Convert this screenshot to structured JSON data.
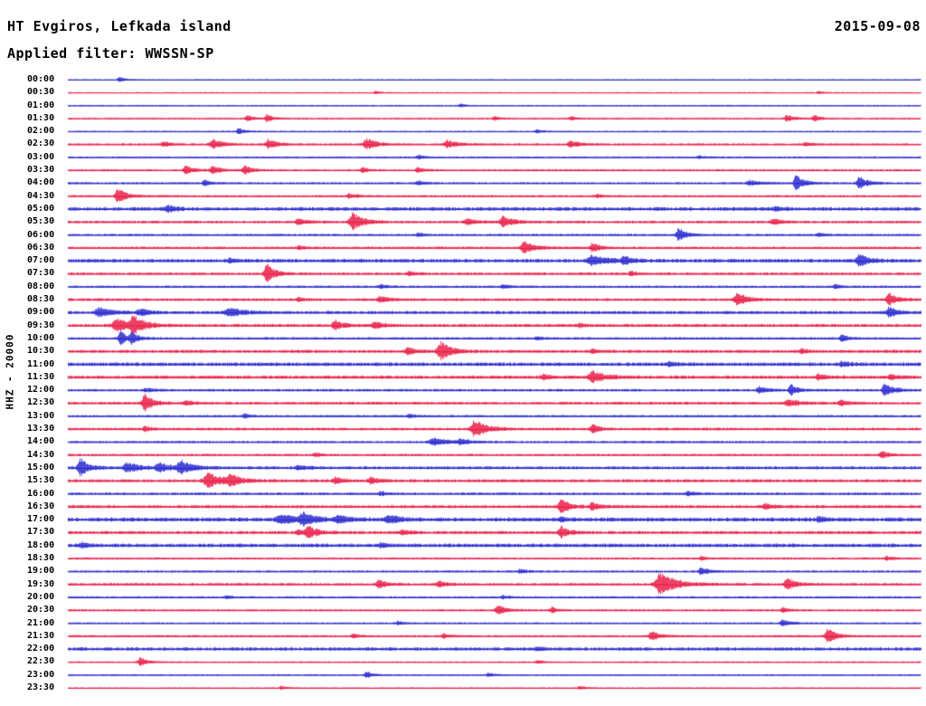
{
  "header": {
    "station_title": "HT Evgiros, Lefkada island",
    "date": "2015-09-08",
    "filter_label": "Applied filter: WWSSN-SP"
  },
  "axis": {
    "left_label": "HHZ - 20000"
  },
  "chart_data": {
    "type": "line",
    "subtype": "helicorder-seismogram",
    "title": "HT Evgiros, Lefkada island",
    "date": "2015-09-08",
    "filter": "WWSSN-SP",
    "channel_scale_label": "HHZ - 20000",
    "minutes_per_row": 30,
    "x_range_minutes": [
      0,
      30
    ],
    "legend": "none",
    "grid": false,
    "colors": {
      "blue": "#1c1ccd",
      "red": "#e8103c"
    },
    "rows": [
      {
        "label": "00:00",
        "color": "blue",
        "noise": 0.6,
        "events": [
          [
            0.06,
            3,
            3
          ]
        ]
      },
      {
        "label": "00:30",
        "color": "red",
        "noise": 0.6,
        "events": [
          [
            0.36,
            2.5,
            2
          ],
          [
            0.88,
            2,
            2
          ]
        ]
      },
      {
        "label": "01:00",
        "color": "blue",
        "noise": 0.7,
        "events": [
          [
            0.46,
            2.5,
            2
          ]
        ]
      },
      {
        "label": "01:30",
        "color": "red",
        "noise": 0.8,
        "events": [
          [
            0.21,
            4,
            3
          ],
          [
            0.233,
            5,
            3
          ],
          [
            0.5,
            2.5,
            3
          ],
          [
            0.59,
            2.5,
            3
          ],
          [
            0.843,
            4,
            4
          ],
          [
            0.875,
            4,
            3
          ]
        ]
      },
      {
        "label": "02:00",
        "color": "blue",
        "noise": 0.8,
        "events": [
          [
            0.2,
            4,
            3
          ],
          [
            0.55,
            2,
            3
          ]
        ]
      },
      {
        "label": "02:30",
        "color": "red",
        "noise": 1.2,
        "events": [
          [
            0.112,
            3,
            4
          ],
          [
            0.17,
            6,
            5
          ],
          [
            0.235,
            6,
            4
          ],
          [
            0.35,
            7,
            5
          ],
          [
            0.445,
            5,
            5
          ],
          [
            0.59,
            4,
            5
          ],
          [
            0.865,
            2.5,
            4
          ]
        ]
      },
      {
        "label": "03:00",
        "color": "blue",
        "noise": 1.0,
        "events": [
          [
            0.41,
            2.5,
            3
          ],
          [
            0.74,
            2,
            3
          ]
        ]
      },
      {
        "label": "03:30",
        "color": "red",
        "noise": 1.2,
        "events": [
          [
            0.138,
            5,
            4
          ],
          [
            0.17,
            5,
            4
          ],
          [
            0.207,
            5,
            4
          ],
          [
            0.345,
            3,
            3
          ],
          [
            0.41,
            3,
            3
          ]
        ]
      },
      {
        "label": "04:00",
        "color": "blue",
        "noise": 1.2,
        "events": [
          [
            0.16,
            4,
            3
          ],
          [
            0.41,
            2.5,
            3
          ],
          [
            0.8,
            3,
            6
          ],
          [
            0.854,
            9,
            4
          ],
          [
            0.928,
            8,
            4
          ]
        ]
      },
      {
        "label": "04:30",
        "color": "red",
        "noise": 1.2,
        "events": [
          [
            0.058,
            10,
            4
          ],
          [
            0.33,
            3,
            4
          ],
          [
            0.62,
            2,
            3
          ]
        ]
      },
      {
        "label": "05:00",
        "color": "blue",
        "noise": 2.2,
        "events": [
          [
            0.117,
            4,
            4
          ],
          [
            0.83,
            2.5,
            4
          ]
        ]
      },
      {
        "label": "05:30",
        "color": "red",
        "noise": 1.5,
        "events": [
          [
            0.27,
            4,
            4
          ],
          [
            0.334,
            11,
            5
          ],
          [
            0.468,
            4,
            4
          ],
          [
            0.51,
            7,
            5
          ],
          [
            0.827,
            4,
            4
          ]
        ]
      },
      {
        "label": "06:00",
        "color": "blue",
        "noise": 1.3,
        "events": [
          [
            0.41,
            2.5,
            3
          ],
          [
            0.716,
            8,
            4
          ],
          [
            0.88,
            2.5,
            3
          ]
        ]
      },
      {
        "label": "06:30",
        "color": "red",
        "noise": 1.5,
        "events": [
          [
            0.27,
            2.5,
            3
          ],
          [
            0.535,
            8,
            5
          ],
          [
            0.615,
            5,
            4
          ]
        ]
      },
      {
        "label": "07:00",
        "color": "blue",
        "noise": 2.2,
        "events": [
          [
            0.19,
            2.5,
            3
          ],
          [
            0.615,
            5,
            8
          ],
          [
            0.652,
            4,
            4
          ],
          [
            0.928,
            8,
            4
          ]
        ]
      },
      {
        "label": "07:30",
        "color": "red",
        "noise": 1.5,
        "events": [
          [
            0.233,
            12,
            4
          ],
          [
            0.4,
            3,
            3
          ],
          [
            0.66,
            2.5,
            3
          ]
        ]
      },
      {
        "label": "08:00",
        "color": "blue",
        "noise": 1.3,
        "events": [
          [
            0.366,
            2.5,
            3
          ],
          [
            0.51,
            2.5,
            3
          ],
          [
            0.9,
            2.5,
            3
          ]
        ]
      },
      {
        "label": "08:30",
        "color": "red",
        "noise": 1.6,
        "events": [
          [
            0.27,
            2.5,
            3
          ],
          [
            0.366,
            4,
            4
          ],
          [
            0.785,
            7,
            5
          ],
          [
            0.962,
            8,
            4
          ]
        ]
      },
      {
        "label": "09:00",
        "color": "blue",
        "noise": 1.8,
        "events": [
          [
            0.037,
            6,
            6
          ],
          [
            0.085,
            4,
            5
          ],
          [
            0.19,
            5,
            8
          ],
          [
            0.963,
            7,
            4
          ]
        ]
      },
      {
        "label": "09:30",
        "color": "red",
        "noise": 1.8,
        "events": [
          [
            0.057,
            8,
            6
          ],
          [
            0.077,
            9,
            6
          ],
          [
            0.313,
            6,
            4
          ],
          [
            0.36,
            4,
            4
          ],
          [
            0.6,
            2.5,
            3
          ]
        ]
      },
      {
        "label": "10:00",
        "color": "blue",
        "noise": 1.5,
        "events": [
          [
            0.0615,
            10,
            3
          ],
          [
            0.075,
            6,
            3
          ],
          [
            0.55,
            2,
            3
          ],
          [
            0.907,
            4,
            3
          ]
        ]
      },
      {
        "label": "10:30",
        "color": "red",
        "noise": 1.8,
        "events": [
          [
            0.398,
            4,
            4
          ],
          [
            0.437,
            11,
            5
          ],
          [
            0.615,
            3,
            3
          ],
          [
            0.86,
            2.5,
            3
          ]
        ]
      },
      {
        "label": "11:00",
        "color": "blue",
        "noise": 2.2,
        "events": [
          [
            0.705,
            2.5,
            3
          ],
          [
            0.907,
            3,
            4
          ]
        ]
      },
      {
        "label": "11:30",
        "color": "red",
        "noise": 2.0,
        "events": [
          [
            0.557,
            3,
            4
          ],
          [
            0.615,
            7,
            6
          ],
          [
            0.88,
            3,
            4
          ],
          [
            0.965,
            3,
            3
          ]
        ]
      },
      {
        "label": "12:00",
        "color": "blue",
        "noise": 1.5,
        "events": [
          [
            0.09,
            2.5,
            3
          ],
          [
            0.811,
            4,
            4
          ],
          [
            0.848,
            6,
            4
          ],
          [
            0.958,
            8,
            4
          ]
        ]
      },
      {
        "label": "12:30",
        "color": "red",
        "noise": 1.6,
        "events": [
          [
            0.09,
            11,
            4
          ],
          [
            0.138,
            3,
            3
          ],
          [
            0.845,
            4,
            6
          ],
          [
            0.906,
            4,
            4
          ]
        ]
      },
      {
        "label": "13:00",
        "color": "blue",
        "noise": 1.3,
        "events": [
          [
            0.207,
            3,
            3
          ],
          [
            0.4,
            2.5,
            3
          ]
        ]
      },
      {
        "label": "13:30",
        "color": "red",
        "noise": 1.6,
        "events": [
          [
            0.09,
            3,
            3
          ],
          [
            0.477,
            10,
            6
          ],
          [
            0.615,
            6,
            3
          ]
        ]
      },
      {
        "label": "14:00",
        "color": "blue",
        "noise": 1.3,
        "events": [
          [
            0.43,
            4,
            8
          ],
          [
            0.46,
            3,
            4
          ]
        ]
      },
      {
        "label": "14:30",
        "color": "red",
        "noise": 1.3,
        "events": [
          [
            0.29,
            2.5,
            3
          ],
          [
            0.955,
            4,
            4
          ]
        ]
      },
      {
        "label": "15:00",
        "color": "blue",
        "noise": 1.8,
        "events": [
          [
            0.014,
            11,
            4
          ],
          [
            0.07,
            6,
            6
          ],
          [
            0.107,
            6,
            5
          ],
          [
            0.133,
            7,
            6
          ],
          [
            0.27,
            3,
            4
          ]
        ]
      },
      {
        "label": "15:30",
        "color": "red",
        "noise": 1.8,
        "events": [
          [
            0.165,
            9,
            7
          ],
          [
            0.19,
            5,
            6
          ],
          [
            0.313,
            4,
            4
          ],
          [
            0.355,
            4,
            4
          ]
        ]
      },
      {
        "label": "16:00",
        "color": "blue",
        "noise": 1.5,
        "events": [
          [
            0.366,
            2.5,
            3
          ],
          [
            0.727,
            2.5,
            3
          ]
        ]
      },
      {
        "label": "16:30",
        "color": "red",
        "noise": 1.8,
        "events": [
          [
            0.578,
            9,
            4
          ],
          [
            0.615,
            5,
            4
          ],
          [
            0.817,
            3,
            4
          ]
        ]
      },
      {
        "label": "17:00",
        "color": "blue",
        "noise": 2.4,
        "events": [
          [
            0.25,
            5,
            8
          ],
          [
            0.275,
            6,
            6
          ],
          [
            0.318,
            4,
            5
          ],
          [
            0.377,
            4,
            6
          ],
          [
            0.578,
            2.5,
            3
          ],
          [
            0.88,
            3,
            4
          ]
        ]
      },
      {
        "label": "17:30",
        "color": "red",
        "noise": 1.8,
        "events": [
          [
            0.27,
            3,
            4
          ],
          [
            0.281,
            8,
            4
          ],
          [
            0.392,
            3,
            4
          ],
          [
            0.578,
            7,
            4
          ]
        ]
      },
      {
        "label": "18:00",
        "color": "blue",
        "noise": 2.2,
        "events": [
          [
            0.016,
            2.5,
            3
          ],
          [
            0.366,
            2.5,
            3
          ]
        ]
      },
      {
        "label": "18:30",
        "color": "red",
        "noise": 1.2,
        "events": [
          [
            0.742,
            2.5,
            3
          ],
          [
            0.96,
            2.5,
            3
          ]
        ]
      },
      {
        "label": "19:00",
        "color": "blue",
        "noise": 1.2,
        "events": [
          [
            0.53,
            2.5,
            3
          ],
          [
            0.742,
            4,
            4
          ]
        ]
      },
      {
        "label": "19:30",
        "color": "red",
        "noise": 1.5,
        "events": [
          [
            0.364,
            5,
            4
          ],
          [
            0.435,
            4,
            4
          ],
          [
            0.695,
            13,
            8
          ],
          [
            0.843,
            8,
            4
          ]
        ]
      },
      {
        "label": "20:00",
        "color": "blue",
        "noise": 1.2,
        "events": [
          [
            0.186,
            2,
            3
          ],
          [
            0.51,
            2,
            3
          ]
        ]
      },
      {
        "label": "20:30",
        "color": "red",
        "noise": 1.2,
        "events": [
          [
            0.504,
            6,
            4
          ],
          [
            0.567,
            3,
            3
          ],
          [
            0.838,
            2.5,
            3
          ]
        ]
      },
      {
        "label": "21:00",
        "color": "blue",
        "noise": 1.0,
        "events": [
          [
            0.387,
            2.5,
            3
          ],
          [
            0.838,
            4,
            4
          ]
        ]
      },
      {
        "label": "21:30",
        "color": "red",
        "noise": 1.2,
        "events": [
          [
            0.334,
            2.5,
            3
          ],
          [
            0.44,
            3,
            3
          ],
          [
            0.684,
            6,
            4
          ],
          [
            0.891,
            10,
            4
          ]
        ]
      },
      {
        "label": "22:00",
        "color": "blue",
        "noise": 2.0,
        "events": [
          [
            0.55,
            2,
            3
          ]
        ]
      },
      {
        "label": "22:30",
        "color": "red",
        "noise": 0.8,
        "events": [
          [
            0.085,
            5,
            4
          ],
          [
            0.55,
            2,
            3
          ]
        ]
      },
      {
        "label": "23:00",
        "color": "blue",
        "noise": 0.8,
        "events": [
          [
            0.35,
            4,
            3
          ],
          [
            0.493,
            2.5,
            3
          ]
        ]
      },
      {
        "label": "23:30",
        "color": "red",
        "noise": 0.7,
        "events": [
          [
            0.25,
            2,
            3
          ],
          [
            0.6,
            2,
            3
          ]
        ]
      }
    ]
  }
}
